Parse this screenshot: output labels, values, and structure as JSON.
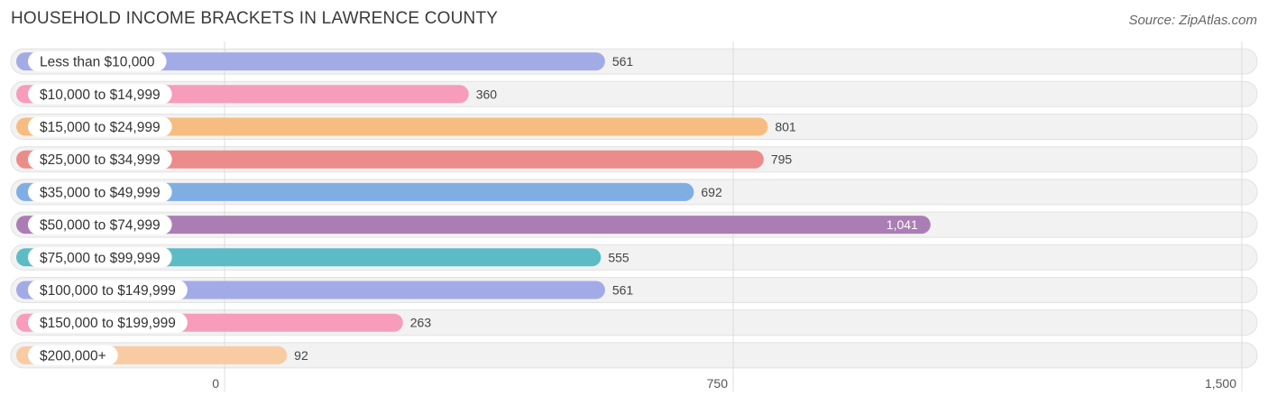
{
  "title": "HOUSEHOLD INCOME BRACKETS IN LAWRENCE COUNTY",
  "source": "Source: ZipAtlas.com",
  "chart_data": {
    "type": "bar",
    "orientation": "horizontal",
    "title": "HOUSEHOLD INCOME BRACKETS IN LAWRENCE COUNTY",
    "categories": [
      "Less than $10,000",
      "$10,000 to $14,999",
      "$15,000 to $24,999",
      "$25,000 to $34,999",
      "$35,000 to $49,999",
      "$50,000 to $74,999",
      "$75,000 to $99,999",
      "$100,000 to $149,999",
      "$150,000 to $199,999",
      "$200,000+"
    ],
    "values": [
      561,
      360,
      801,
      795,
      692,
      1041,
      555,
      561,
      263,
      92
    ],
    "value_labels": [
      "561",
      "360",
      "801",
      "795",
      "692",
      "1,041",
      "555",
      "561",
      "263",
      "92"
    ],
    "colors": [
      "#a3abe6",
      "#f79cba",
      "#f7bd80",
      "#ec8c8a",
      "#7eaee4",
      "#ab7db5",
      "#5bbcc6",
      "#a3abe6",
      "#f79cba",
      "#f9cba3"
    ],
    "xticks": [
      0,
      750,
      1500
    ],
    "xtick_labels": [
      "0",
      "750",
      "1,500"
    ],
    "xlim": [
      0,
      1500
    ],
    "grid": true
  }
}
